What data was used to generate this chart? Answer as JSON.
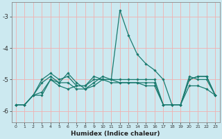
{
  "title": "",
  "xlabel": "Humidex (Indice chaleur)",
  "ylabel": "",
  "bg_color": "#cce9f0",
  "grid_color": "#f0b0b0",
  "line_color": "#1a7a6e",
  "xlim": [
    -0.5,
    23.5
  ],
  "ylim": [
    -6.35,
    -2.55
  ],
  "yticks": [
    -6,
    -5,
    -4,
    -3
  ],
  "xticks": [
    0,
    1,
    2,
    3,
    4,
    5,
    6,
    7,
    8,
    9,
    10,
    11,
    12,
    13,
    14,
    15,
    16,
    17,
    18,
    19,
    20,
    21,
    22,
    23
  ],
  "series_x": [
    0,
    1,
    2,
    3,
    4,
    5,
    6,
    7,
    8,
    9,
    10,
    11,
    12,
    13,
    14,
    15,
    16,
    17,
    18,
    19,
    20,
    21,
    22,
    23
  ],
  "series": [
    [
      -5.8,
      -5.8,
      -5.5,
      -5.5,
      -5.0,
      -5.1,
      -4.8,
      -5.1,
      -5.3,
      -5.2,
      -5.0,
      -5.1,
      -5.1,
      -5.1,
      -5.1,
      -5.2,
      -5.2,
      -5.8,
      -5.8,
      -5.8,
      -5.2,
      -5.2,
      -5.3,
      -5.5
    ],
    [
      -5.8,
      -5.8,
      -5.5,
      -5.4,
      -5.0,
      -5.2,
      -5.3,
      -5.2,
      -5.2,
      -5.0,
      -5.0,
      -5.0,
      -2.8,
      -3.6,
      -4.2,
      -4.5,
      -4.7,
      -5.0,
      -5.8,
      -5.8,
      -4.9,
      -5.0,
      -5.0,
      -5.5
    ],
    [
      -5.8,
      -5.8,
      -5.5,
      -5.1,
      -4.9,
      -5.1,
      -5.1,
      -5.3,
      -5.3,
      -5.1,
      -4.9,
      -5.0,
      -5.1,
      -5.1,
      -5.1,
      -5.1,
      -5.1,
      -5.8,
      -5.8,
      -5.8,
      -5.0,
      -4.9,
      -4.9,
      -5.5
    ],
    [
      -5.8,
      -5.8,
      -5.5,
      -5.0,
      -4.8,
      -5.0,
      -4.9,
      -5.2,
      -5.2,
      -4.9,
      -5.0,
      -5.0,
      -5.0,
      -5.0,
      -5.0,
      -5.0,
      -5.0,
      -5.8,
      -5.8,
      -5.8,
      -5.0,
      -4.9,
      -4.9,
      -5.5
    ]
  ]
}
